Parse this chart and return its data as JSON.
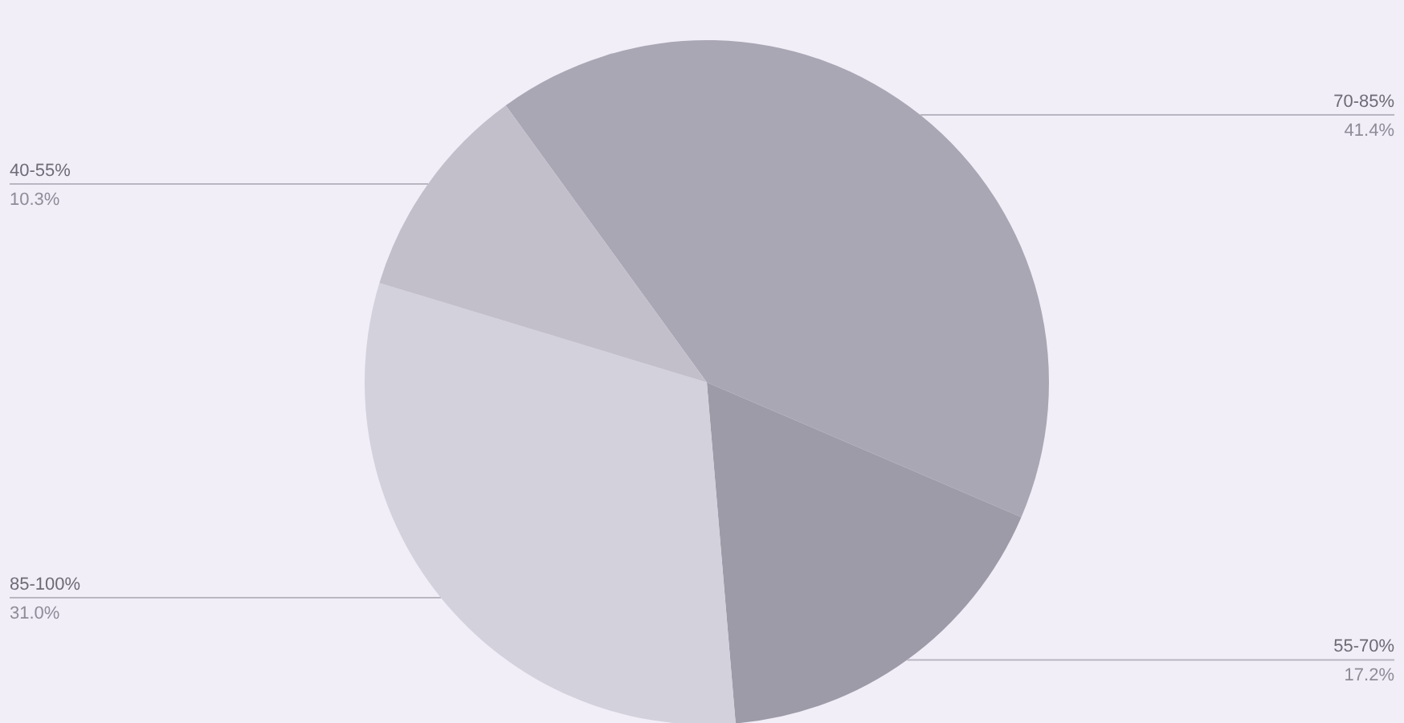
{
  "chart_data": {
    "type": "pie",
    "categories": [
      "70-85%",
      "55-70%",
      "85-100%",
      "40-55%"
    ],
    "values": [
      41.4,
      17.2,
      31.0,
      10.3
    ],
    "value_labels": [
      "41.4%",
      "17.2%",
      "31.0%",
      "10.3%"
    ],
    "colors": [
      "#aaa7b4",
      "#9e9ba8",
      "#d3d1db",
      "#c2bfcb"
    ]
  }
}
